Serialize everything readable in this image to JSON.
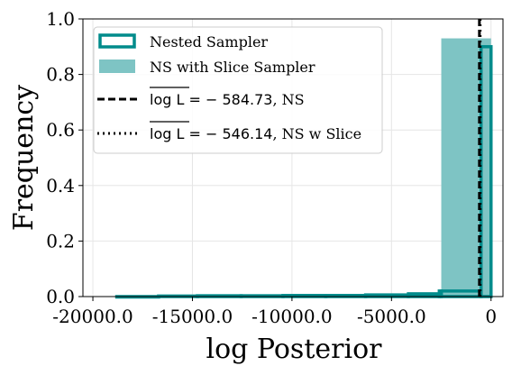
{
  "colors": {
    "nested_outline": "#008b8b",
    "slice_fill": "#7ec4c4",
    "grid": "#e6e6e6",
    "reference_line": "#000000"
  },
  "chart_data": {
    "type": "histogram",
    "xlabel": "log Posterior",
    "ylabel": "Frequency",
    "xlim": [
      -20500,
      600
    ],
    "ylim": [
      0.0,
      1.0
    ],
    "grid": true,
    "legend_position": "top-left",
    "x_ticks": [
      -20000,
      -15000,
      -10000,
      -5000,
      0
    ],
    "x_tick_labels": [
      "-20000.0",
      "-15000.0",
      "-10000.0",
      "-5000.0",
      "0"
    ],
    "y_ticks": [
      0.0,
      0.2,
      0.4,
      0.6,
      0.8,
      1.0
    ],
    "y_tick_labels": [
      "0.0",
      "0.2",
      "0.4",
      "0.6",
      "0.8",
      "1.0"
    ],
    "series": [
      {
        "name": "Nested Sampler",
        "style": "step",
        "bin_edges": [
          -18800,
          -16700,
          -14750,
          -12550,
          -10450,
          -8300,
          -6300,
          -4150,
          -2600,
          -2500,
          -500,
          0
        ],
        "values": [
          0.0,
          0.002,
          0.003,
          0.003,
          0.004,
          0.004,
          0.006,
          0.01,
          0.02,
          0.02,
          0.9
        ]
      },
      {
        "name": "NS with Slice Sampler",
        "style": "filled",
        "bin_edges": [
          -2500,
          0
        ],
        "values": [
          0.93
        ]
      }
    ],
    "reference_lines": [
      {
        "name_prefix": "$\\overline{\\log L} = -584.73$",
        "name_suffix": ", NS",
        "math_text": "log L = − 584.73",
        "suffix_text": ", NS",
        "x": -584.73,
        "style": "dashed"
      },
      {
        "name_prefix": "$\\overline{\\log L} = -546.14$",
        "name_suffix": ", NS w Slice",
        "math_text": "log L = − 546.14",
        "suffix_text": ", NS w Slice",
        "x": -546.14,
        "style": "dotted"
      }
    ],
    "legend": [
      "Nested Sampler",
      "NS with Slice Sampler",
      "log L = − 584.73, NS",
      "log L = − 546.14, NS w Slice"
    ]
  }
}
